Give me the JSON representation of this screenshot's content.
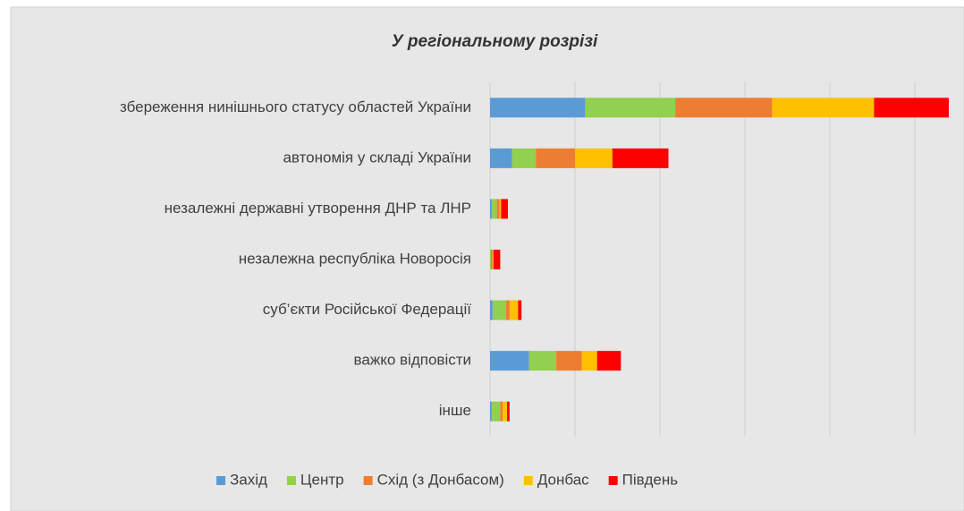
{
  "chart_data": {
    "type": "stacked_barh",
    "title": "У регіональному розрізі",
    "categories": [
      "збереження нинішнього статусу областей України",
      "автономія у складі України",
      "незалежні державні утворення ДНР та ЛНР",
      "незалежна республіка Новоросія",
      "суб’єкти Російської Федерації",
      "важко відповісти",
      "інше"
    ],
    "series": [
      {
        "name": "Захід",
        "color": "#5b9bd5",
        "values": [
          56,
          13,
          1,
          0,
          1.5,
          23,
          1
        ]
      },
      {
        "name": "Центр",
        "color": "#92d050",
        "values": [
          53,
          14,
          3,
          0.5,
          8,
          16,
          5
        ]
      },
      {
        "name": "Схід (з Донбасом)",
        "color": "#ed7d31",
        "values": [
          57,
          23,
          1.5,
          1,
          2,
          15,
          1.5
        ]
      },
      {
        "name": "Донбас",
        "color": "#ffc000",
        "values": [
          60,
          22,
          1,
          0.5,
          5,
          9,
          2.5
        ]
      },
      {
        "name": "Південь",
        "color": "#ff0000",
        "values": [
          44,
          33,
          4,
          4,
          2,
          14,
          1.5
        ]
      }
    ],
    "xlim": [
      0,
      275
    ],
    "xticks": [
      0,
      50,
      100,
      150,
      200,
      250
    ],
    "grid": true,
    "legend": "bottom"
  }
}
